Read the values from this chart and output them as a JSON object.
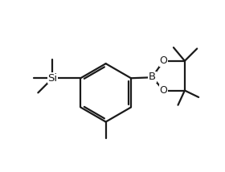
{
  "bg_color": "#ffffff",
  "line_color": "#1a1a1a",
  "line_width": 1.6,
  "font_size_atom": 9.0,
  "fig_width": 2.8,
  "fig_height": 2.14,
  "dpi": 100,
  "xlim": [
    0,
    10
  ],
  "ylim": [
    0,
    7.6
  ]
}
